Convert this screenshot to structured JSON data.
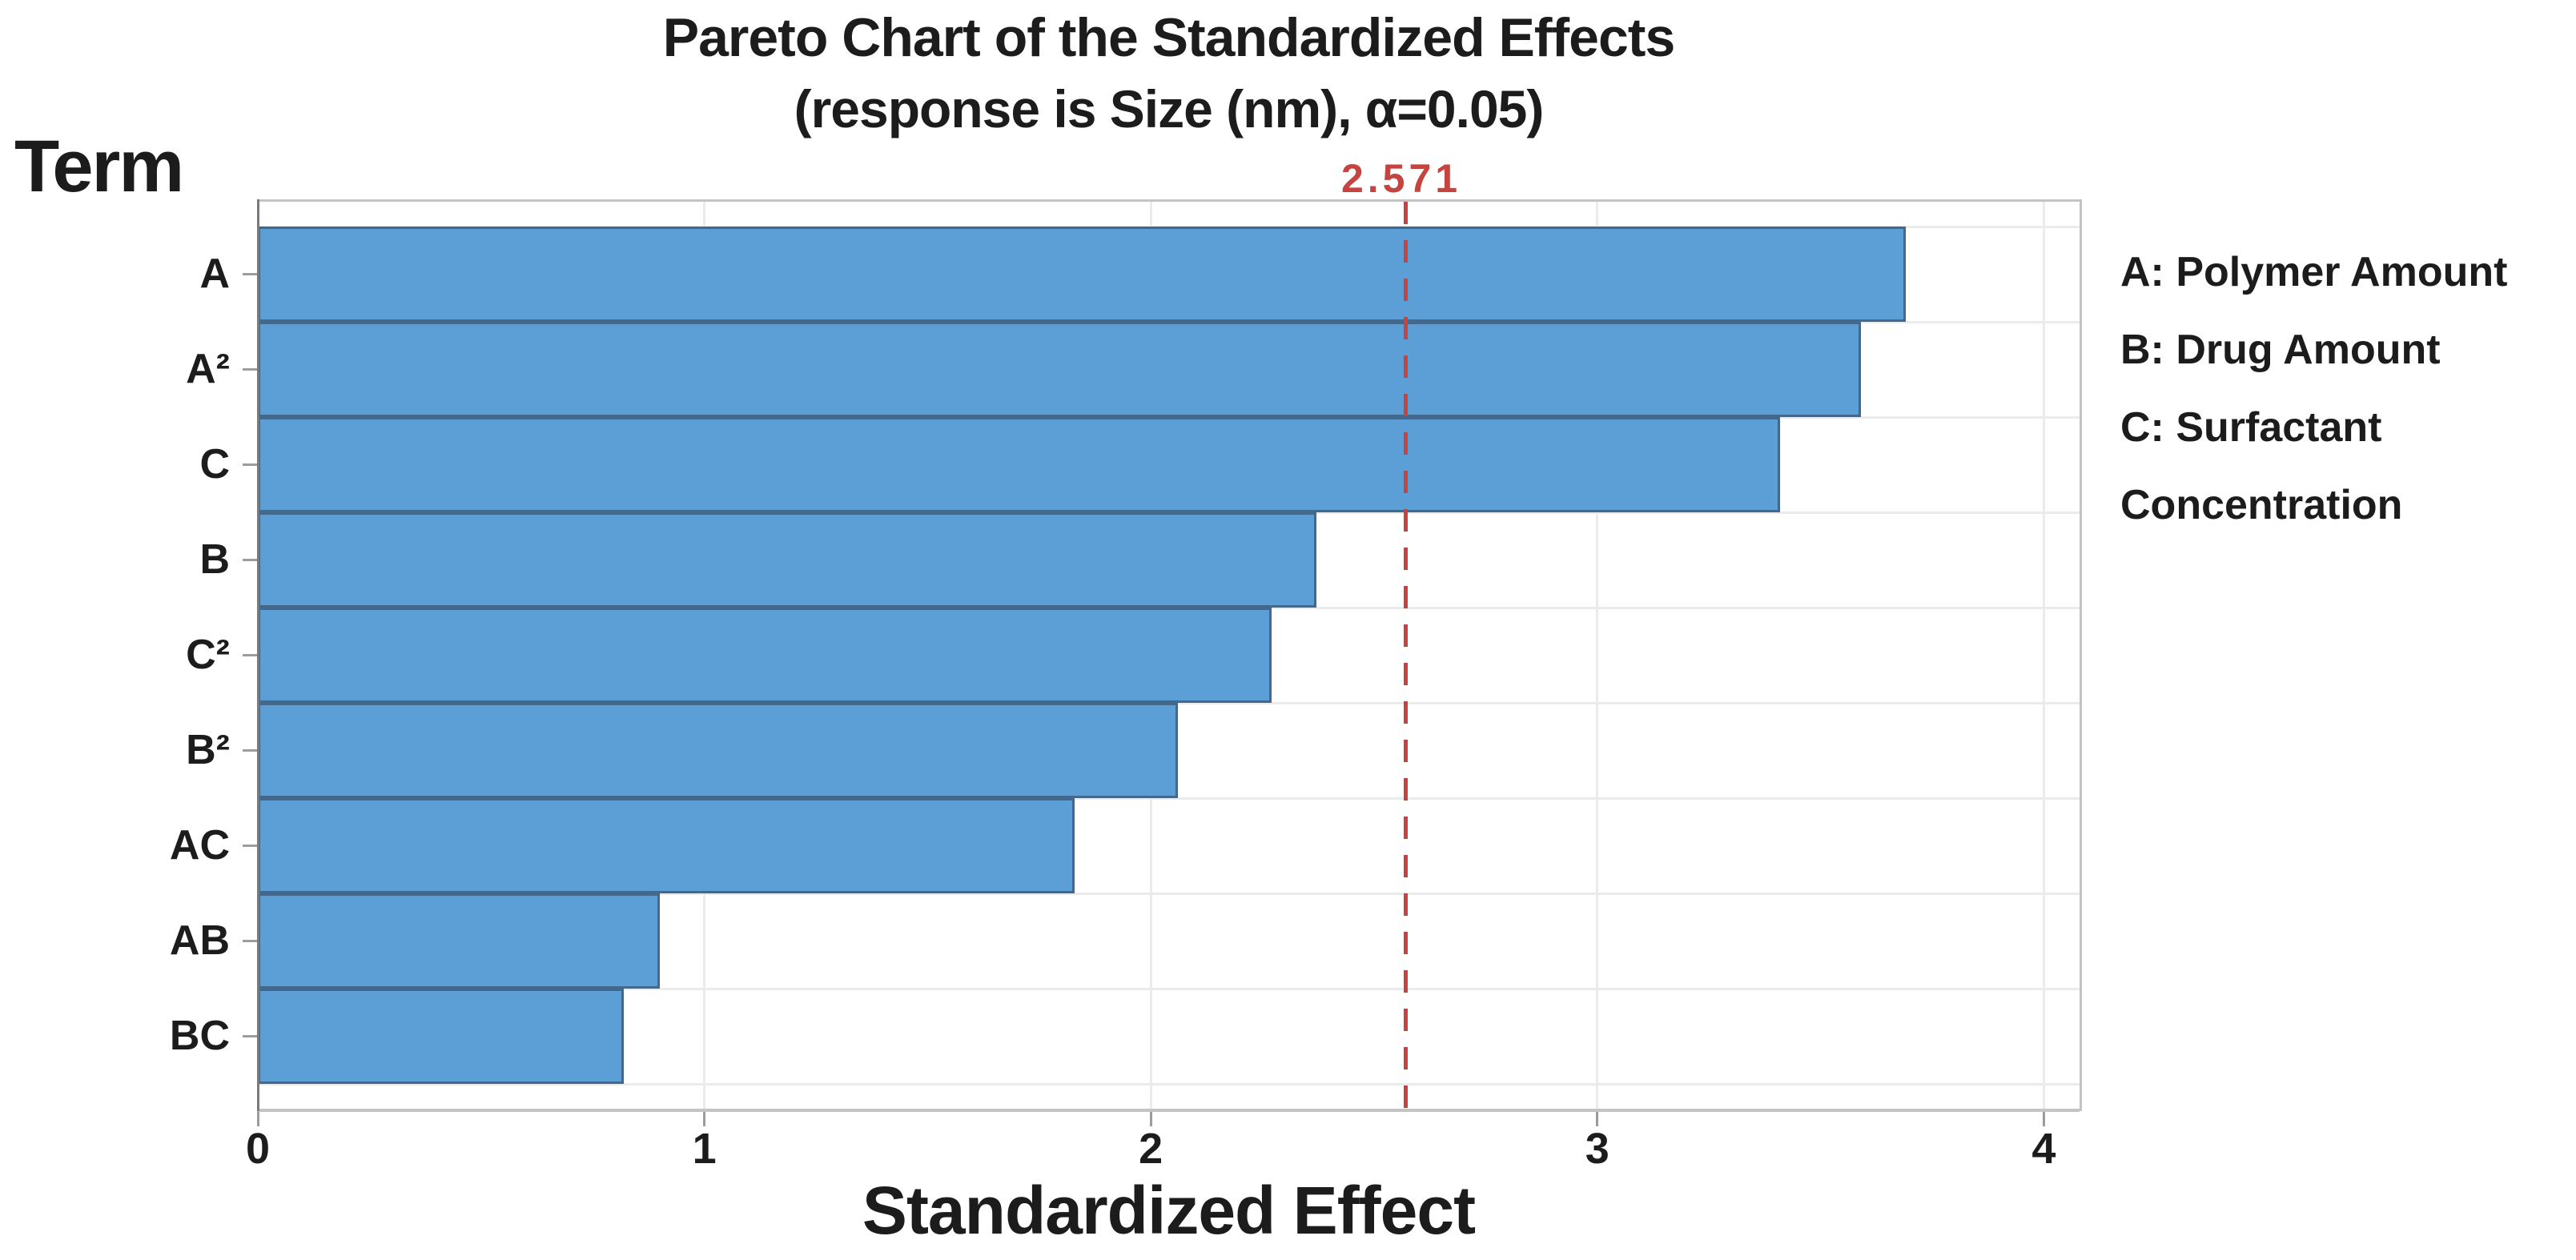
{
  "chart_data": {
    "type": "bar",
    "orientation": "horizontal",
    "title": "Pareto Chart of the Standardized Effects",
    "subtitle": "(response is Size (nm), α=0.05)",
    "y_axis_title": "Term",
    "xlabel": "Standardized Effect",
    "categories": [
      "A",
      "A²",
      "C",
      "B",
      "C²",
      "B²",
      "AC",
      "AB",
      "BC"
    ],
    "values": [
      3.69,
      3.59,
      3.41,
      2.37,
      2.27,
      2.06,
      1.83,
      0.9,
      0.82
    ],
    "x_ticks": [
      0,
      1,
      2,
      3,
      4
    ],
    "xlim": [
      0,
      4.08
    ],
    "grid": true,
    "legend_position": "right",
    "reference_line": {
      "value": 2.571,
      "label": "2.571"
    },
    "legend": [
      "A: Polymer Amount",
      "B: Drug Amount",
      "C: Surfactant Concentration"
    ],
    "legend_lines": [
      "A: Polymer Amount",
      "B: Drug Amount",
      "C: Surfactant",
      "Concentration"
    ],
    "colors": {
      "bar_fill": "#5B9FD6",
      "bar_border": "#44688C",
      "reference": "#C64440",
      "grid": "#ebebeb",
      "plot_border": "#c4c4c4",
      "left_spine": "#7a7a7a",
      "tick": "#9c9c9c",
      "text": "#1c1c1c"
    }
  }
}
